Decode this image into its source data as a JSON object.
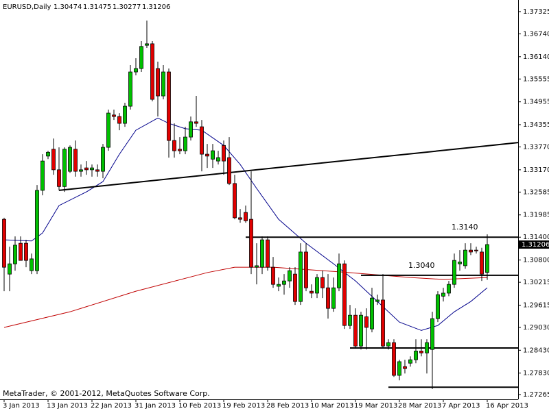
{
  "chart_data": {
    "type": "candlestick",
    "title": "EURUSD,Daily",
    "watermark": "MetaTrader, © 2001-2012, MetaQuotes Software Corp.",
    "categories": [
      "3 Jan 2013",
      null,
      null,
      null,
      null,
      null,
      null,
      null,
      "13 Jan 2013",
      null,
      null,
      null,
      null,
      null,
      null,
      null,
      "22 Jan 2013",
      null,
      null,
      null,
      null,
      null,
      null,
      null,
      "31 Jan 2013",
      null,
      null,
      null,
      null,
      null,
      null,
      null,
      "10 Feb 2013",
      null,
      null,
      null,
      null,
      null,
      null,
      null,
      "19 Feb 2013",
      null,
      null,
      null,
      null,
      null,
      null,
      null,
      "28 Feb 2013",
      null,
      null,
      null,
      null,
      null,
      null,
      null,
      "10 Mar 2013",
      null,
      null,
      null,
      null,
      null,
      null,
      null,
      "19 Mar 2013",
      null,
      null,
      null,
      null,
      null,
      null,
      null,
      "28 Mar 2013",
      null,
      null,
      null,
      null,
      null,
      null,
      null,
      "7 Apr 2013",
      null,
      null,
      null,
      null,
      null,
      null,
      null,
      "16 Apr 2013"
    ],
    "open": [
      1.3187,
      1.3043,
      1.307,
      1.3124,
      1.3124,
      1.3052,
      1.3052,
      1.3263,
      1.3353,
      1.3371,
      1.3317,
      1.3273,
      1.3313,
      1.3371,
      1.3313,
      1.3322,
      1.3317,
      1.3317,
      1.3313,
      1.3376,
      1.3461,
      1.3457,
      1.3439,
      1.3484,
      1.3574,
      1.3583,
      1.3644,
      1.3648,
      1.3583,
      1.3511,
      1.3574,
      1.3394,
      1.3371,
      1.3367,
      1.3403,
      1.3443,
      1.343,
      1.3358,
      1.3345,
      1.334,
      1.3381,
      1.3349,
      1.3281,
      1.3191,
      1.3205,
      1.3187,
      1.3061,
      1.3061,
      1.3133,
      1.3061,
      1.3011,
      1.3016,
      1.3025,
      1.3043,
      1.2971,
      1.3101,
      1.2998,
      1.2993,
      1.3034,
      1.3007,
      1.2953,
      1.3007,
      1.307,
      1.2908,
      1.2935,
      1.2854,
      1.2931,
      1.2899,
      1.2971,
      1.2975,
      1.2854,
      1.2863,
      1.2777,
      1.28,
      1.2809,
      1.2818,
      1.2841,
      1.2836,
      1.2845,
      1.2926,
      1.2985,
      1.2993,
      1.3016,
      1.307,
      1.3065,
      1.3106,
      1.3106,
      1.3101,
      1.30474
    ],
    "high": [
      1.3191,
      1.3115,
      1.3142,
      1.3142,
      1.3133,
      1.3097,
      1.3277,
      1.3358,
      1.3367,
      1.3399,
      1.3376,
      1.3376,
      1.3381,
      1.3394,
      1.3331,
      1.334,
      1.3331,
      1.3331,
      1.3385,
      1.3475,
      1.3475,
      1.3466,
      1.3493,
      1.3592,
      1.361,
      1.3655,
      1.3709,
      1.3655,
      1.3601,
      1.3592,
      1.3583,
      1.3439,
      1.3403,
      1.343,
      1.3457,
      1.3511,
      1.3448,
      1.3385,
      1.3385,
      1.3367,
      1.3394,
      1.3403,
      1.3304,
      1.3214,
      1.3223,
      1.3313,
      1.3124,
      1.3142,
      1.3142,
      1.3088,
      1.3034,
      1.3043,
      1.3061,
      1.3061,
      1.3124,
      1.3124,
      1.3016,
      1.3043,
      1.3052,
      1.3043,
      1.3034,
      1.3097,
      1.3079,
      1.2962,
      1.2953,
      1.2944,
      1.2953,
      1.3007,
      1.2989,
      1.3043,
      1.2872,
      1.2872,
      1.2818,
      1.2818,
      1.2827,
      1.2872,
      1.2872,
      1.2872,
      1.2944,
      1.2998,
      1.3007,
      1.3025,
      1.3097,
      1.3106,
      1.3124,
      1.3124,
      1.3115,
      1.3112,
      1.31475
    ],
    "low": [
      1.2998,
      1.2998,
      1.3052,
      1.3079,
      1.3061,
      1.3043,
      1.3043,
      1.325,
      1.3345,
      1.3304,
      1.3263,
      1.3259,
      1.3309,
      1.3299,
      1.3299,
      1.3304,
      1.3299,
      1.3299,
      1.3295,
      1.3367,
      1.3448,
      1.3421,
      1.343,
      1.3475,
      1.3565,
      1.3574,
      1.3637,
      1.3497,
      1.3457,
      1.3502,
      1.3349,
      1.3349,
      1.3358,
      1.3358,
      1.3394,
      1.343,
      1.3313,
      1.3322,
      1.3322,
      1.3331,
      1.3304,
      1.3277,
      1.3187,
      1.3178,
      1.3178,
      1.3043,
      1.3016,
      1.3043,
      1.3052,
      1.3007,
      1.2998,
      1.2989,
      1.3007,
      1.2962,
      1.2962,
      1.2998,
      1.298,
      1.298,
      1.298,
      1.2926,
      1.2944,
      1.2998,
      1.2899,
      1.2899,
      1.2849,
      1.2845,
      1.2845,
      1.289,
      1.2962,
      1.2849,
      1.2845,
      1.2773,
      1.2764,
      1.2782,
      1.28,
      1.2809,
      1.2827,
      1.2782,
      1.2741,
      1.2917,
      1.2971,
      1.2985,
      1.3007,
      1.3052,
      1.3057,
      1.3093,
      1.3097,
      1.3025,
      1.30277
    ],
    "close": [
      1.3061,
      1.307,
      1.3119,
      1.3079,
      1.3079,
      1.3083,
      1.3263,
      1.334,
      1.3363,
      1.3317,
      1.3273,
      1.3371,
      1.3376,
      1.3313,
      1.3317,
      1.3317,
      1.3322,
      1.3313,
      1.3376,
      1.3466,
      1.3457,
      1.3439,
      1.3484,
      1.3574,
      1.3583,
      1.3641,
      1.3648,
      1.3502,
      1.3511,
      1.3574,
      1.3394,
      1.3367,
      1.3367,
      1.3403,
      1.3443,
      1.3439,
      1.3358,
      1.3353,
      1.3367,
      1.3349,
      1.334,
      1.3281,
      1.3191,
      1.3187,
      1.3183,
      1.3061,
      1.3065,
      1.3133,
      1.3061,
      1.3016,
      1.3016,
      1.3025,
      1.3052,
      1.2971,
      1.3101,
      1.3007,
      1.2993,
      1.3034,
      1.3007,
      1.2953,
      1.3007,
      1.307,
      1.2908,
      1.2935,
      1.2854,
      1.2935,
      1.2903,
      1.298,
      1.2975,
      1.2854,
      1.2863,
      1.2777,
      1.2813,
      1.2795,
      1.2818,
      1.2841,
      1.2836,
      1.2863,
      1.2926,
      1.2989,
      1.2993,
      1.3016,
      1.3079,
      1.3075,
      1.3106,
      1.3101,
      1.3104,
      1.3043,
      1.31206
    ],
    "up_color": "#00c000",
    "down_color": "#e00000",
    "overlays": [
      {
        "color": "#00008b",
        "x": [
          0,
          5,
          7,
          10,
          15,
          18,
          21,
          24,
          28,
          30,
          33,
          36,
          40,
          43,
          46,
          50,
          55,
          60,
          64,
          68,
          72,
          76,
          79,
          82,
          85,
          88
        ],
        "values": [
          1.3133,
          1.313,
          1.3151,
          1.3223,
          1.3259,
          1.3286,
          1.3358,
          1.3421,
          1.3453,
          1.3439,
          1.3425,
          1.3421,
          1.3381,
          1.3331,
          1.3268,
          1.3187,
          1.3124,
          1.307,
          1.3025,
          1.2971,
          1.2917,
          1.2895,
          1.2908,
          1.2944,
          1.2971,
          1.3007
        ]
      },
      {
        "color": "#c00000",
        "x": [
          0,
          12,
          24,
          37,
          42,
          49,
          62,
          74,
          80,
          88
        ],
        "values": [
          1.2903,
          1.2944,
          1.2998,
          1.3047,
          1.3061,
          1.3061,
          1.3048,
          1.3034,
          1.3029,
          1.3034
        ]
      }
    ],
    "trendline": {
      "x": [
        10,
        88
      ],
      "values": [
        1.3263,
        1.338
      ]
    },
    "levels": [
      {
        "value": 1.314,
        "label": "1.3140",
        "from": 44
      },
      {
        "value": 1.304,
        "label": "1.3040",
        "from": 65
      },
      {
        "value": 1.2849,
        "from": 63
      },
      {
        "value": 1.2746,
        "from": 70
      }
    ],
    "ylim": [
      1.2714,
      1.3763
    ],
    "yticks": [
      1.37325,
      {
        "value": 1.3674,
        "label": "1.36740"
      },
      {
        "value": 1.3614,
        "label": "1.36140"
      },
      1.35555,
      1.34955,
      1.34355,
      {
        "value": 1.3377,
        "label": "1.33770"
      },
      {
        "value": 1.3317,
        "label": "1.33170"
      },
      1.32585,
      1.31985,
      {
        "value": 1.314,
        "label": "1.31400"
      },
      {
        "value": 1.308,
        "label": "1.30800"
      },
      1.30215,
      1.29615,
      {
        "value": 1.2903,
        "label": "1.29030"
      },
      {
        "value": 1.2843,
        "label": "1.28430"
      },
      {
        "value": 1.2783,
        "label": "1.27830"
      },
      1.27265
    ],
    "grid": false
  }
}
